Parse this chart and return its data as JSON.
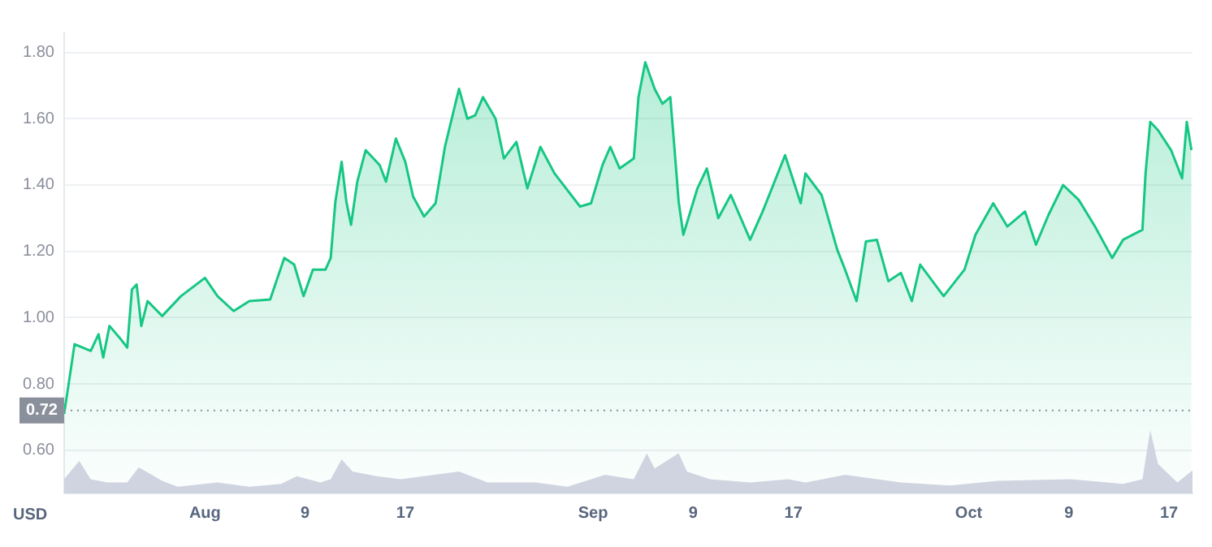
{
  "chart_data": {
    "type": "area",
    "ylabel": "USD",
    "ylim": [
      0.47,
      1.86
    ],
    "yticks": [
      {
        "value": 0.6,
        "label": "0.60"
      },
      {
        "value": 0.8,
        "label": "0.80"
      },
      {
        "value": 1.0,
        "label": "1.00"
      },
      {
        "value": 1.2,
        "label": "1.20"
      },
      {
        "value": 1.4,
        "label": "1.40"
      },
      {
        "value": 1.6,
        "label": "1.60"
      },
      {
        "value": 1.8,
        "label": "1.80"
      }
    ],
    "xlim": [
      "--07-20T18:00",
      "--10-18T21:00"
    ],
    "xticks": [
      {
        "value": "--08-01",
        "label": "Aug"
      },
      {
        "value": "--08-09",
        "label": "9"
      },
      {
        "value": "--08-17",
        "label": "17"
      },
      {
        "value": "--09-01",
        "label": "Sep"
      },
      {
        "value": "--09-09",
        "label": "9"
      },
      {
        "value": "--09-17",
        "label": "17"
      },
      {
        "value": "--10-01",
        "label": "Oct"
      },
      {
        "value": "--10-09",
        "label": "9"
      },
      {
        "value": "--10-17",
        "label": "17"
      }
    ],
    "grid": "y",
    "legend": false,
    "ref_lines": [
      {
        "axis": "y",
        "value": 0.72,
        "label": "0.72",
        "line_style": "dotted",
        "color": "#8a8f9c"
      }
    ],
    "series": [
      {
        "color": "#16c784",
        "x": [
          "--07-20T18:00",
          "--07-21T06:00",
          "--07-21T14:00",
          "--07-22T21:00",
          "--07-23T12:00",
          "--07-23T21:00",
          "--07-24T09:00",
          "--07-25T04:00",
          "--07-25T19:00",
          "--07-26T04:00",
          "--07-26T13:00",
          "--07-26T22:00",
          "--07-27T10:00",
          "--07-28T14:00",
          "--07-30T02:00",
          "--08-01T00:00",
          "--08-02T00:00",
          "--08-03T07:00",
          "--08-04T13:00",
          "--08-06T05:00",
          "--08-07T08:00",
          "--08-08T03:00",
          "--08-08T21:00",
          "--08-09T15:00",
          "--08-10T15:00",
          "--08-11T01:00",
          "--08-11T10:00",
          "--08-11T22:00",
          "--08-12T07:00",
          "--08-12T16:00",
          "--08-13T04:00",
          "--08-13T20:00",
          "--08-14T23:00",
          "--08-15T11:00",
          "--08-16T06:00",
          "--08-17T00:00",
          "--08-17T15:00",
          "--08-18T12:00",
          "--08-19T10:00",
          "--08-20T04:00",
          "--08-21T07:00",
          "--08-21T23:00",
          "--08-22T14:00",
          "--08-23T05:00",
          "--08-24T05:00",
          "--08-24T21:00",
          "--08-25T21:00",
          "--08-26T18:00",
          "--08-27T19:00",
          "--08-28T22:00",
          "--08-30T23:00",
          "--08-31T20:00",
          "--09-01T18:00",
          "--09-02T09:00",
          "--09-03T03:00",
          "--09-04T06:00",
          "--09-04T15:00",
          "--09-05T04:00",
          "--09-05T22:00",
          "--09-06T13:00",
          "--09-07T04:00",
          "--09-07T11:00",
          "--09-07T20:00",
          "--09-08T05:00",
          "--09-09T08:00",
          "--09-10T02:00",
          "--09-11T00:00",
          "--09-12T00:00",
          "--09-13T13:00",
          "--09-14T13:00",
          "--09-16T08:00",
          "--09-17T14:00",
          "--09-17T23:00",
          "--09-19T06:00",
          "--09-20T12:00",
          "--09-21T03:00",
          "--09-22T01:00",
          "--09-22T19:00",
          "--09-23T16:00",
          "--09-24T14:00",
          "--09-25T14:00",
          "--09-26T11:00",
          "--09-27T03:00",
          "--09-29T00:00",
          "--09-30T16:00",
          "--10-01T13:00",
          "--10-02T23:00",
          "--10-04T02:00",
          "--10-05T12:00",
          "--10-06T09:00",
          "--10-07T09:00",
          "--10-08T13:00",
          "--10-09T19:00",
          "--10-11T02:00",
          "--10-12T11:00",
          "--10-13T08:00",
          "--10-14T21:00",
          "--10-15T03:00",
          "--10-15T12:00",
          "--10-16T03:00",
          "--10-17T04:00",
          "--10-18T01:00",
          "--10-18T10:00",
          "--10-18T19:00"
        ],
        "values": [
          0.71,
          0.835,
          0.92,
          0.9,
          0.95,
          0.88,
          0.975,
          0.94,
          0.91,
          1.085,
          1.1,
          0.975,
          1.05,
          1.005,
          1.065,
          1.12,
          1.065,
          1.02,
          1.05,
          1.055,
          1.18,
          1.16,
          1.065,
          1.145,
          1.145,
          1.18,
          1.35,
          1.47,
          1.35,
          1.28,
          1.41,
          1.505,
          1.46,
          1.41,
          1.54,
          1.47,
          1.365,
          1.305,
          1.345,
          1.515,
          1.69,
          1.6,
          1.61,
          1.665,
          1.6,
          1.48,
          1.53,
          1.39,
          1.515,
          1.435,
          1.335,
          1.345,
          1.46,
          1.515,
          1.45,
          1.48,
          1.665,
          1.77,
          1.69,
          1.645,
          1.665,
          1.53,
          1.35,
          1.25,
          1.39,
          1.45,
          1.3,
          1.37,
          1.235,
          1.32,
          1.49,
          1.345,
          1.435,
          1.37,
          1.205,
          1.145,
          1.05,
          1.23,
          1.235,
          1.11,
          1.135,
          1.05,
          1.16,
          1.065,
          1.145,
          1.25,
          1.345,
          1.275,
          1.32,
          1.22,
          1.31,
          1.4,
          1.355,
          1.275,
          1.18,
          1.235,
          1.265,
          1.435,
          1.59,
          1.565,
          1.505,
          1.42,
          1.59,
          1.505
        ]
      },
      {
        "color": "#cfd4e0",
        "x": [
          "--07-20T18:00",
          "--07-21T23:00",
          "--07-22T21:00",
          "--07-24T05:00",
          "--07-25T19:00",
          "--07-26T17:00",
          "--07-28T14:00",
          "--07-29T20:00",
          "--08-02T00:00",
          "--08-04T13:00",
          "--08-07T02:00",
          "--08-08T08:00",
          "--08-10T05:00",
          "--08-11T01:00",
          "--08-11T22:00",
          "--08-12T19:00",
          "--08-14T17:00",
          "--08-16T15:00",
          "--08-21T07:00",
          "--08-23T14:00",
          "--08-27T10:00",
          "--08-29T23:00",
          "--09-01T23:00",
          "--09-04T06:00",
          "--09-05T07:00",
          "--09-05T22:00",
          "--09-07T20:00",
          "--09-08T12:00",
          "--09-10T08:00",
          "--09-13T13:00",
          "--09-16T14:00",
          "--09-17T23:00",
          "--09-21T03:00",
          "--09-25T14:00",
          "--09-29T12:00",
          "--10-03T08:00",
          "--10-09T04:00",
          "--10-13T08:00",
          "--10-14T21:00",
          "--10-15T12:00",
          "--10-16T03:00",
          "--10-17T16:00",
          "--10-18T21:00"
        ],
        "values": [
          0.513,
          0.568,
          0.513,
          0.503,
          0.503,
          0.549,
          0.508,
          0.49,
          0.503,
          0.49,
          0.499,
          0.522,
          0.503,
          0.513,
          0.573,
          0.536,
          0.522,
          0.513,
          0.536,
          0.503,
          0.503,
          0.49,
          0.526,
          0.513,
          0.591,
          0.545,
          0.591,
          0.536,
          0.513,
          0.503,
          0.513,
          0.503,
          0.526,
          0.503,
          0.494,
          0.508,
          0.513,
          0.499,
          0.513,
          0.66,
          0.559,
          0.503,
          0.54
        ]
      }
    ]
  }
}
